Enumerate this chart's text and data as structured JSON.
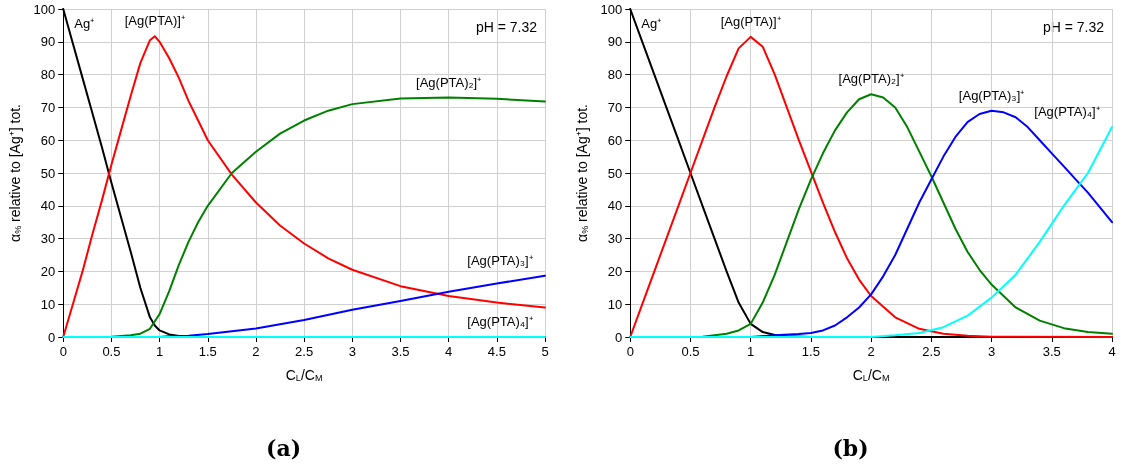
{
  "chart_data": [
    {
      "type": "line",
      "title": "(a)",
      "xlabel": "C$_{L}$/C$_{M}$",
      "ylabel": "α$_{%}$ relative to [Ag⁺] tot.",
      "annotations": [
        "pH = 7.32"
      ],
      "xlim": [
        0,
        5
      ],
      "xticks": [
        0,
        0.5,
        1,
        1.5,
        2,
        2.5,
        3,
        3.5,
        4,
        4.5,
        5
      ],
      "ylim": [
        0,
        100
      ],
      "yticks": [
        0,
        10,
        20,
        30,
        40,
        50,
        60,
        70,
        80,
        90,
        100
      ],
      "grid": true,
      "legend": false,
      "marker": "none",
      "line_style": "solid",
      "series": [
        {
          "name": "Ag⁺",
          "color": "#000000",
          "x": [
            0,
            0.1,
            0.2,
            0.3,
            0.4,
            0.5,
            0.6,
            0.7,
            0.8,
            0.9,
            0.95,
            1.0,
            1.1,
            1.2,
            1.3,
            1.5,
            2,
            3,
            4,
            5
          ],
          "values": [
            100,
            89.5,
            79,
            68.5,
            58,
            47,
            36.5,
            26,
            15,
            6,
            3.5,
            2,
            0.8,
            0.3,
            0.1,
            0,
            0,
            0,
            0,
            0
          ]
        },
        {
          "name": "[Ag(PTA)]⁺",
          "color": "#ff0000",
          "x": [
            0,
            0.1,
            0.2,
            0.3,
            0.4,
            0.5,
            0.6,
            0.7,
            0.8,
            0.9,
            0.95,
            1.0,
            1.1,
            1.2,
            1.3,
            1.4,
            1.5,
            1.75,
            2.0,
            2.25,
            2.5,
            2.75,
            3.0,
            3.5,
            4.0,
            4.5,
            5.0
          ],
          "values": [
            0,
            10,
            20,
            31,
            41.5,
            52.5,
            63,
            73.5,
            83.5,
            90.5,
            91.7,
            90,
            85,
            79,
            72,
            66,
            60,
            49.5,
            41,
            34,
            28.5,
            24,
            20.5,
            15.5,
            12.5,
            10.5,
            9
          ]
        },
        {
          "name": "[Ag(PTA)₂]⁺",
          "color": "#008000",
          "x": [
            0,
            0.5,
            0.7,
            0.8,
            0.9,
            1.0,
            1.1,
            1.2,
            1.3,
            1.4,
            1.5,
            1.75,
            2.0,
            2.25,
            2.5,
            2.75,
            3.0,
            3.5,
            4.0,
            4.5,
            5.0
          ],
          "values": [
            0,
            0.1,
            0.5,
            1,
            2.5,
            7,
            14,
            22,
            29,
            35,
            40,
            50,
            56.5,
            62,
            66,
            69,
            71,
            72.7,
            73,
            72.6,
            71.8
          ]
        },
        {
          "name": "[Ag(PTA)₃]⁺",
          "color": "#0000ff",
          "x": [
            0,
            1.0,
            1.1,
            1.3,
            1.5,
            2.0,
            2.5,
            3.0,
            3.5,
            4.0,
            4.5,
            5.0
          ],
          "values": [
            0,
            0,
            0.2,
            0.4,
            0.9,
            2.6,
            5.2,
            8.3,
            11,
            13.8,
            16.3,
            18.7
          ]
        },
        {
          "name": "[Ag(PTA)₄]⁺",
          "color": "#00ffff",
          "x": [
            0,
            1,
            2,
            3,
            4,
            5
          ],
          "values": [
            0,
            0,
            0,
            0,
            0,
            0
          ]
        }
      ]
    },
    {
      "type": "line",
      "title": "(b)",
      "xlabel": "C$_{L}$/C$_{M}$",
      "ylabel": "α$_{%}$ relative to [Ag⁺] tot.",
      "annotations": [
        "pH = 7.32"
      ],
      "xlim": [
        0,
        4
      ],
      "xticks": [
        0,
        0.5,
        1,
        1.5,
        2,
        2.5,
        3,
        3.5,
        4
      ],
      "ylim": [
        0,
        100
      ],
      "yticks": [
        0,
        10,
        20,
        30,
        40,
        50,
        60,
        70,
        80,
        90,
        100
      ],
      "grid": true,
      "legend": false,
      "marker": "none",
      "line_style": "solid",
      "series": [
        {
          "name": "Ag⁺",
          "color": "#000000",
          "x": [
            0,
            0.1,
            0.2,
            0.3,
            0.4,
            0.5,
            0.6,
            0.7,
            0.8,
            0.9,
            1.0,
            1.1,
            1.2,
            1.3,
            1.5,
            2,
            3,
            4
          ],
          "values": [
            100,
            90,
            80,
            70,
            60,
            50,
            40,
            30,
            20,
            10.5,
            4,
            1.5,
            0.6,
            0.2,
            0,
            0,
            0,
            0
          ]
        },
        {
          "name": "[Ag(PTA)]⁺",
          "color": "#ff0000",
          "x": [
            0,
            0.1,
            0.2,
            0.3,
            0.4,
            0.5,
            0.6,
            0.7,
            0.8,
            0.9,
            1.0,
            1.1,
            1.2,
            1.3,
            1.4,
            1.5,
            1.6,
            1.7,
            1.8,
            1.9,
            2.0,
            2.2,
            2.4,
            2.6,
            2.8,
            3.0,
            4.0
          ],
          "values": [
            0,
            10,
            20,
            30,
            40,
            50,
            60,
            70,
            79.5,
            88,
            91.5,
            88.5,
            80,
            70,
            60,
            50.5,
            41,
            32,
            24,
            17.5,
            12.5,
            6,
            2.5,
            1,
            0.4,
            0.1,
            0
          ]
        },
        {
          "name": "[Ag(PTA)₂]⁺",
          "color": "#008000",
          "x": [
            0,
            0.6,
            0.8,
            0.9,
            1.0,
            1.1,
            1.2,
            1.3,
            1.4,
            1.5,
            1.6,
            1.7,
            1.8,
            1.9,
            2.0,
            2.1,
            2.2,
            2.3,
            2.4,
            2.5,
            2.6,
            2.7,
            2.8,
            2.9,
            3.0,
            3.2,
            3.4,
            3.6,
            3.8,
            4.0
          ],
          "values": [
            0,
            0.1,
            1,
            2,
            4,
            10.5,
            19,
            29,
            39,
            48,
            56,
            63,
            68.5,
            72.5,
            74,
            73,
            70,
            64,
            56.5,
            49,
            41,
            33,
            26,
            20.5,
            16,
            9,
            5,
            2.7,
            1.5,
            1
          ]
        },
        {
          "name": "[Ag(PTA)₃]⁺",
          "color": "#0000ff",
          "x": [
            0,
            1.0,
            1.2,
            1.4,
            1.5,
            1.6,
            1.7,
            1.8,
            1.9,
            2.0,
            2.1,
            2.2,
            2.3,
            2.4,
            2.5,
            2.6,
            2.7,
            2.8,
            2.9,
            3.0,
            3.1,
            3.2,
            3.3,
            3.4,
            3.5,
            3.6,
            3.7,
            3.8,
            3.9,
            4.0
          ],
          "values": [
            0,
            0,
            0.5,
            0.9,
            1.2,
            2,
            3.5,
            6,
            9,
            13,
            18.5,
            25,
            33,
            41,
            48,
            55,
            61,
            65.5,
            68,
            69,
            68.5,
            67,
            64,
            60,
            56,
            52,
            48,
            44,
            39.5,
            35
          ]
        },
        {
          "name": "[Ag(PTA)₄]⁺",
          "color": "#00ffff",
          "x": [
            0,
            2.0,
            2.2,
            2.4,
            2.6,
            2.8,
            3.0,
            3.2,
            3.4,
            3.5,
            3.6,
            3.7,
            3.8,
            3.9,
            4.0
          ],
          "values": [
            0,
            0,
            0.5,
            1.2,
            3,
            6.5,
            12,
            19,
            29,
            34.5,
            40,
            45,
            50,
            57,
            64
          ]
        }
      ]
    }
  ]
}
